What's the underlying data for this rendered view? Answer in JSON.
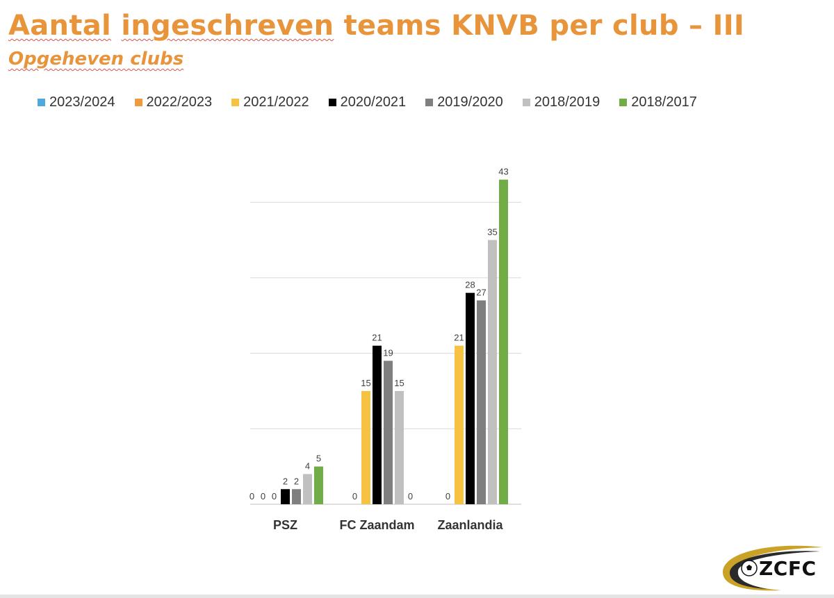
{
  "slide": {
    "title_part1": "Aantal",
    "title_part2": "ingeschreven",
    "title_part3": "teams KNVB per club – III",
    "subtitle": "Opgeheven clubs",
    "logo_text": "ZCFC",
    "logo_icon": "soccer-ball-icon"
  },
  "chart_data": {
    "type": "bar",
    "categories": [
      "PSZ",
      "FC Zaandam",
      "Zaanlandia"
    ],
    "series": [
      {
        "name": "2023/2024",
        "color": "#4FA8E0",
        "values": [
          0,
          null,
          null
        ]
      },
      {
        "name": "2022/2023",
        "color": "#F09A3E",
        "values": [
          0,
          0,
          0
        ]
      },
      {
        "name": "2021/2022",
        "color": "#F5C242",
        "values": [
          0,
          15,
          21
        ]
      },
      {
        "name": "2020/2021",
        "color": "#000000",
        "values": [
          2,
          21,
          28
        ]
      },
      {
        "name": "2019/2020",
        "color": "#7F7F7F",
        "values": [
          2,
          19,
          27
        ]
      },
      {
        "name": "2018/2019",
        "color": "#C0C0C0",
        "values": [
          4,
          15,
          35
        ]
      },
      {
        "name": "2018/2017",
        "color": "#70AD47",
        "values": [
          5,
          0,
          43
        ]
      }
    ],
    "ylim": [
      0,
      45
    ],
    "grid": true,
    "legend_position": "top",
    "data_labels": true
  }
}
